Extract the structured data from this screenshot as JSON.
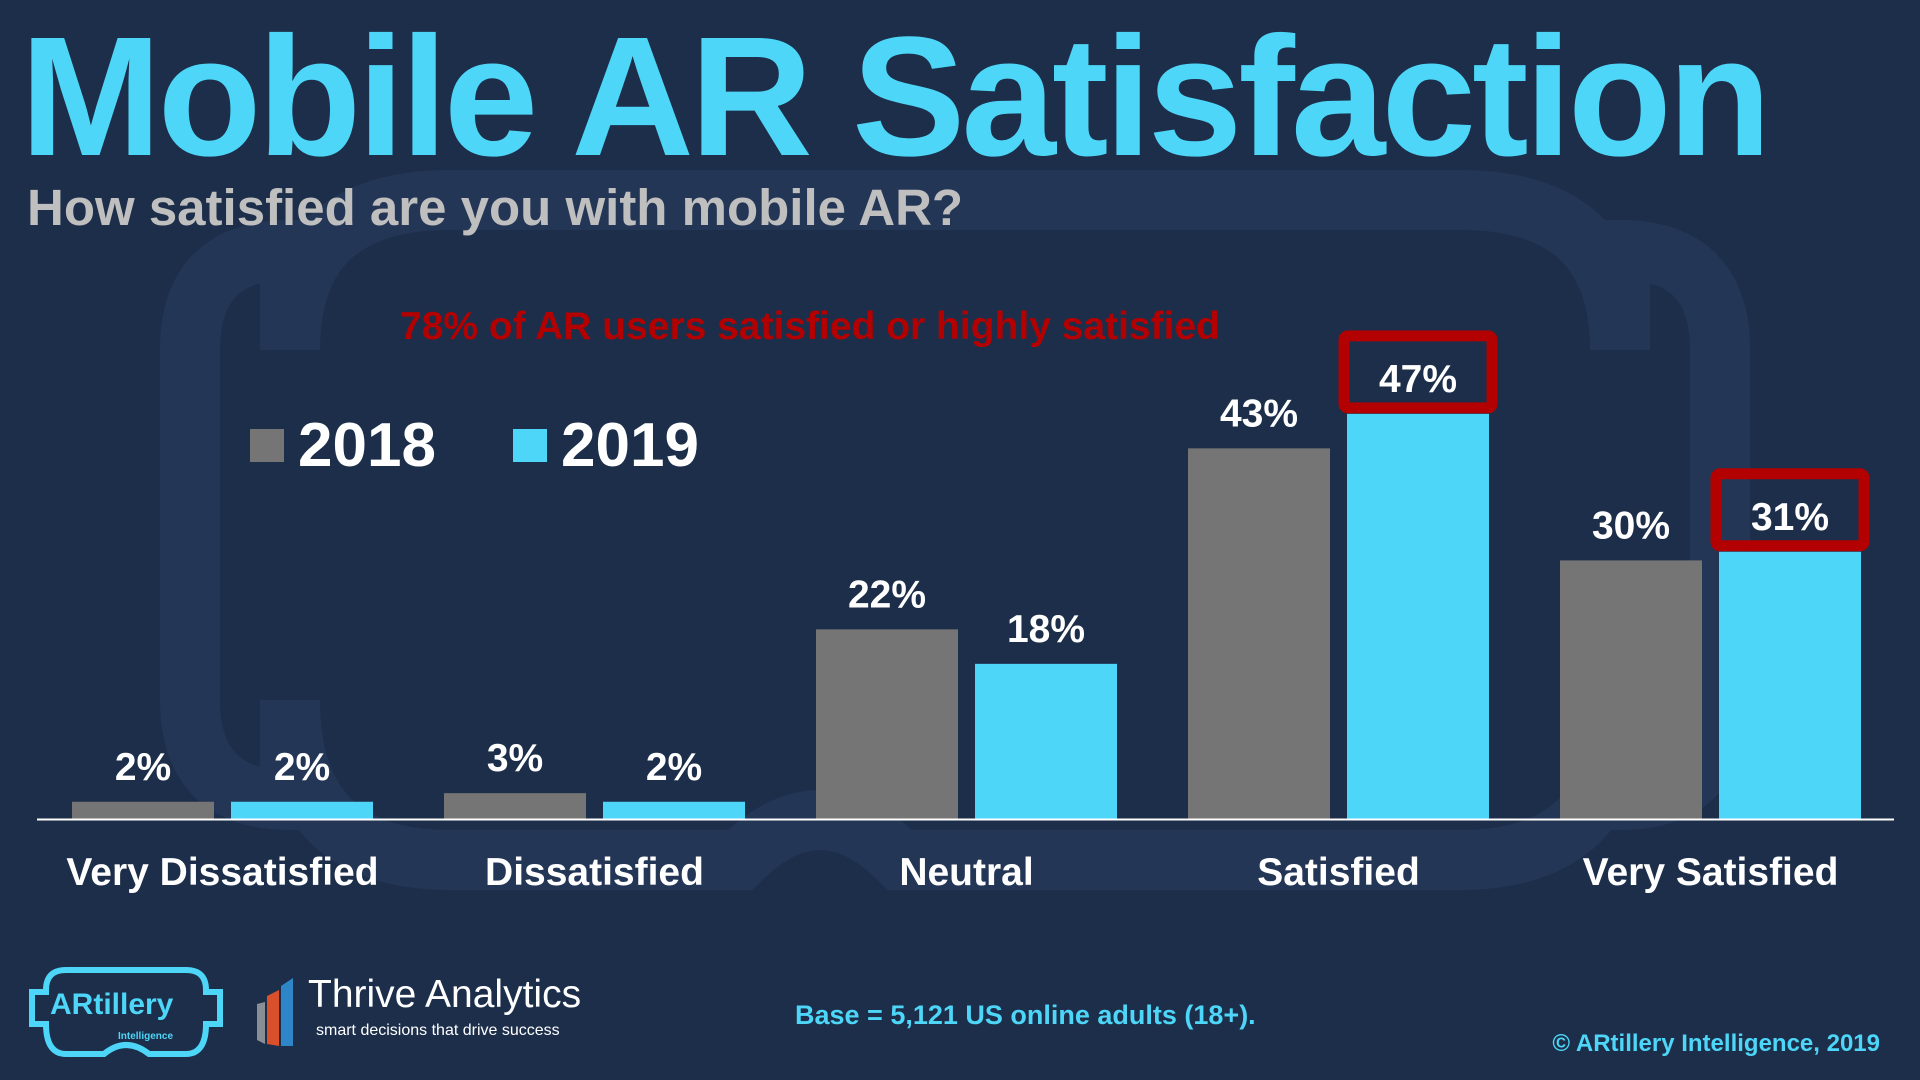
{
  "title": "Mobile AR Satisfaction",
  "subtitle": "How satisfied are you with mobile AR?",
  "annotation": "78% of AR users satisfied or highly satisfied",
  "colors": {
    "2018": "#757575",
    "2019": "#4dd6f7",
    "highlight": "#b30000",
    "background": "#1c2e4a"
  },
  "chart_data": {
    "type": "bar",
    "title": "Mobile AR Satisfaction",
    "categories": [
      "Very Dissatisfied",
      "Dissatisfied",
      "Neutral",
      "Satisfied",
      "Very Satisfied"
    ],
    "series": [
      {
        "name": "2018",
        "values": [
          2,
          3,
          22,
          43,
          30
        ],
        "labels": [
          "2%",
          "3%",
          "22%",
          "43%",
          "30%"
        ]
      },
      {
        "name": "2019",
        "values": [
          2,
          2,
          18,
          47,
          31
        ],
        "labels": [
          "2%",
          "2%",
          "18%",
          "47%",
          "31%"
        ]
      }
    ],
    "highlighted": [
      {
        "series": "2019",
        "category": "Satisfied"
      },
      {
        "series": "2019",
        "category": "Very Satisfied"
      }
    ],
    "ylim": [
      0,
      50
    ],
    "legend": "top-left",
    "grid": false
  },
  "footer": {
    "base": "Base = 5,121 US online adults (18+).",
    "copyright": "© ARtillery Intelligence, 2019",
    "logo1": {
      "name": "ARtillery",
      "sub": "Intelligence"
    },
    "logo2": {
      "name": "Thrive Analytics",
      "tagline": "smart decisions that drive success"
    }
  }
}
